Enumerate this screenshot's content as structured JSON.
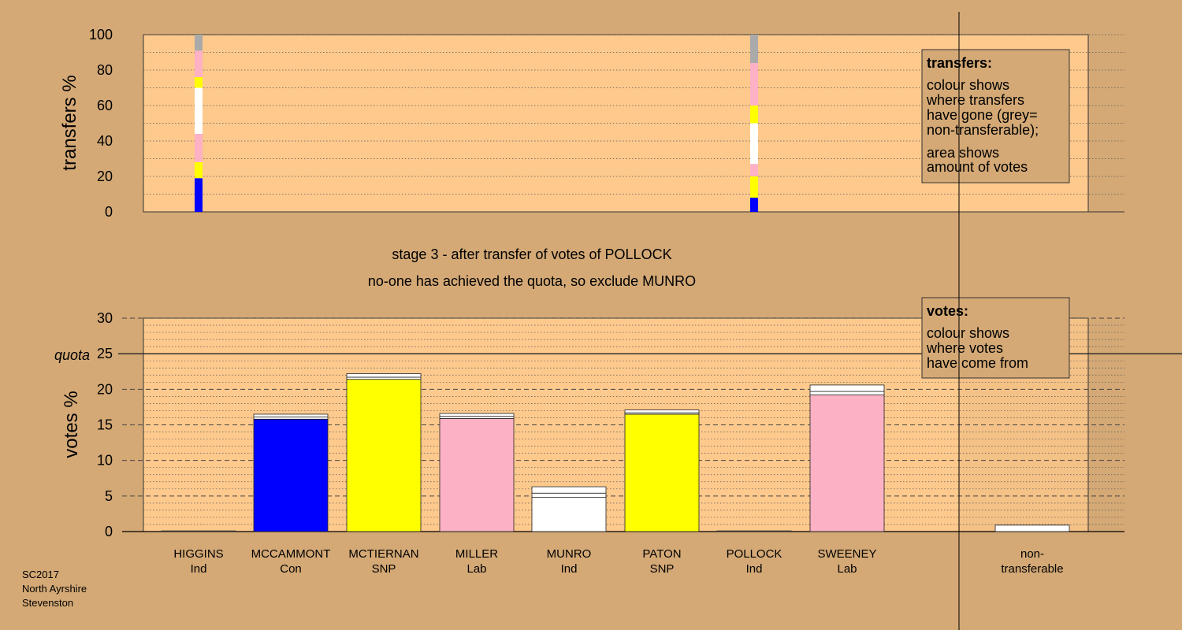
{
  "stage_text": {
    "line1": "stage 3 - after transfer of votes of POLLOCK",
    "line2": "no-one has achieved the quota, so exclude MUNRO"
  },
  "transfers_legend": {
    "title": "transfers:",
    "lines": [
      "colour shows",
      "where transfers",
      "have gone (grey=",
      "non-transferable);",
      "area shows",
      "amount of votes"
    ]
  },
  "votes_legend": {
    "title": "votes:",
    "lines": [
      "colour shows",
      "where votes",
      "have come from"
    ]
  },
  "footer": [
    "SC2017",
    "North Ayrshire",
    "Stevenston"
  ],
  "quota_label": "quota",
  "colors": {
    "background": "#d4a976",
    "plot_bg": "#fec98d",
    "Con": "#0000ff",
    "SNP": "#ffff00",
    "Lab": "#fcb1c4",
    "Ind": "#ffffff",
    "non_transferable": "#aaaaaa"
  },
  "chart_data": [
    {
      "type": "bar",
      "name": "transfers",
      "ylabel": "transfers %",
      "ylim": [
        0,
        100
      ],
      "yticks": [
        0,
        20,
        40,
        60,
        80,
        100
      ],
      "columns": [
        {
          "category_index": 0,
          "segments": [
            {
              "party": "Con",
              "from": 0,
              "to": 19
            },
            {
              "party": "SNP",
              "from": 19,
              "to": 28
            },
            {
              "party": "Lab",
              "from": 28,
              "to": 44
            },
            {
              "party": "Ind",
              "from": 44,
              "to": 70
            },
            {
              "party": "SNP",
              "from": 70,
              "to": 76
            },
            {
              "party": "Lab",
              "from": 76,
              "to": 91
            },
            {
              "party": "non_transferable",
              "from": 91,
              "to": 100
            }
          ]
        },
        {
          "category_index": 6,
          "segments": [
            {
              "party": "Con",
              "from": 0,
              "to": 8
            },
            {
              "party": "SNP",
              "from": 8,
              "to": 20
            },
            {
              "party": "Lab",
              "from": 20,
              "to": 27
            },
            {
              "party": "Ind",
              "from": 27,
              "to": 50
            },
            {
              "party": "SNP",
              "from": 50,
              "to": 60
            },
            {
              "party": "Lab",
              "from": 60,
              "to": 84
            },
            {
              "party": "non_transferable",
              "from": 84,
              "to": 100
            }
          ]
        }
      ]
    },
    {
      "type": "bar",
      "name": "votes",
      "ylabel": "votes %",
      "ylim": [
        0,
        30
      ],
      "yticks": [
        0,
        5,
        10,
        15,
        20,
        25,
        30
      ],
      "quota": 25,
      "categories": [
        {
          "name": "HIGGINS",
          "party": "Ind",
          "segments": [
            0.1
          ]
        },
        {
          "name": "MCCAMMONT",
          "party": "Con",
          "segments": [
            15.8,
            0.3,
            0.4
          ]
        },
        {
          "name": "MCTIERNAN",
          "party": "SNP",
          "segments": [
            21.4,
            0.3,
            0.5
          ]
        },
        {
          "name": "MILLER",
          "party": "Lab",
          "segments": [
            15.9,
            0.3,
            0.4
          ]
        },
        {
          "name": "MUNRO",
          "party": "Ind",
          "segments": [
            4.8,
            0.6,
            0.9
          ]
        },
        {
          "name": "PATON",
          "party": "SNP",
          "segments": [
            16.5,
            0.2,
            0.4
          ]
        },
        {
          "name": "POLLOCK",
          "party": "Ind",
          "segments": [
            0.1
          ]
        },
        {
          "name": "SWEENEY",
          "party": "Lab",
          "segments": [
            19.2,
            0.5,
            0.9
          ]
        }
      ],
      "non_transferable": {
        "label_line1": "non-",
        "label_line2": "transferable",
        "value": 0.9
      }
    }
  ]
}
